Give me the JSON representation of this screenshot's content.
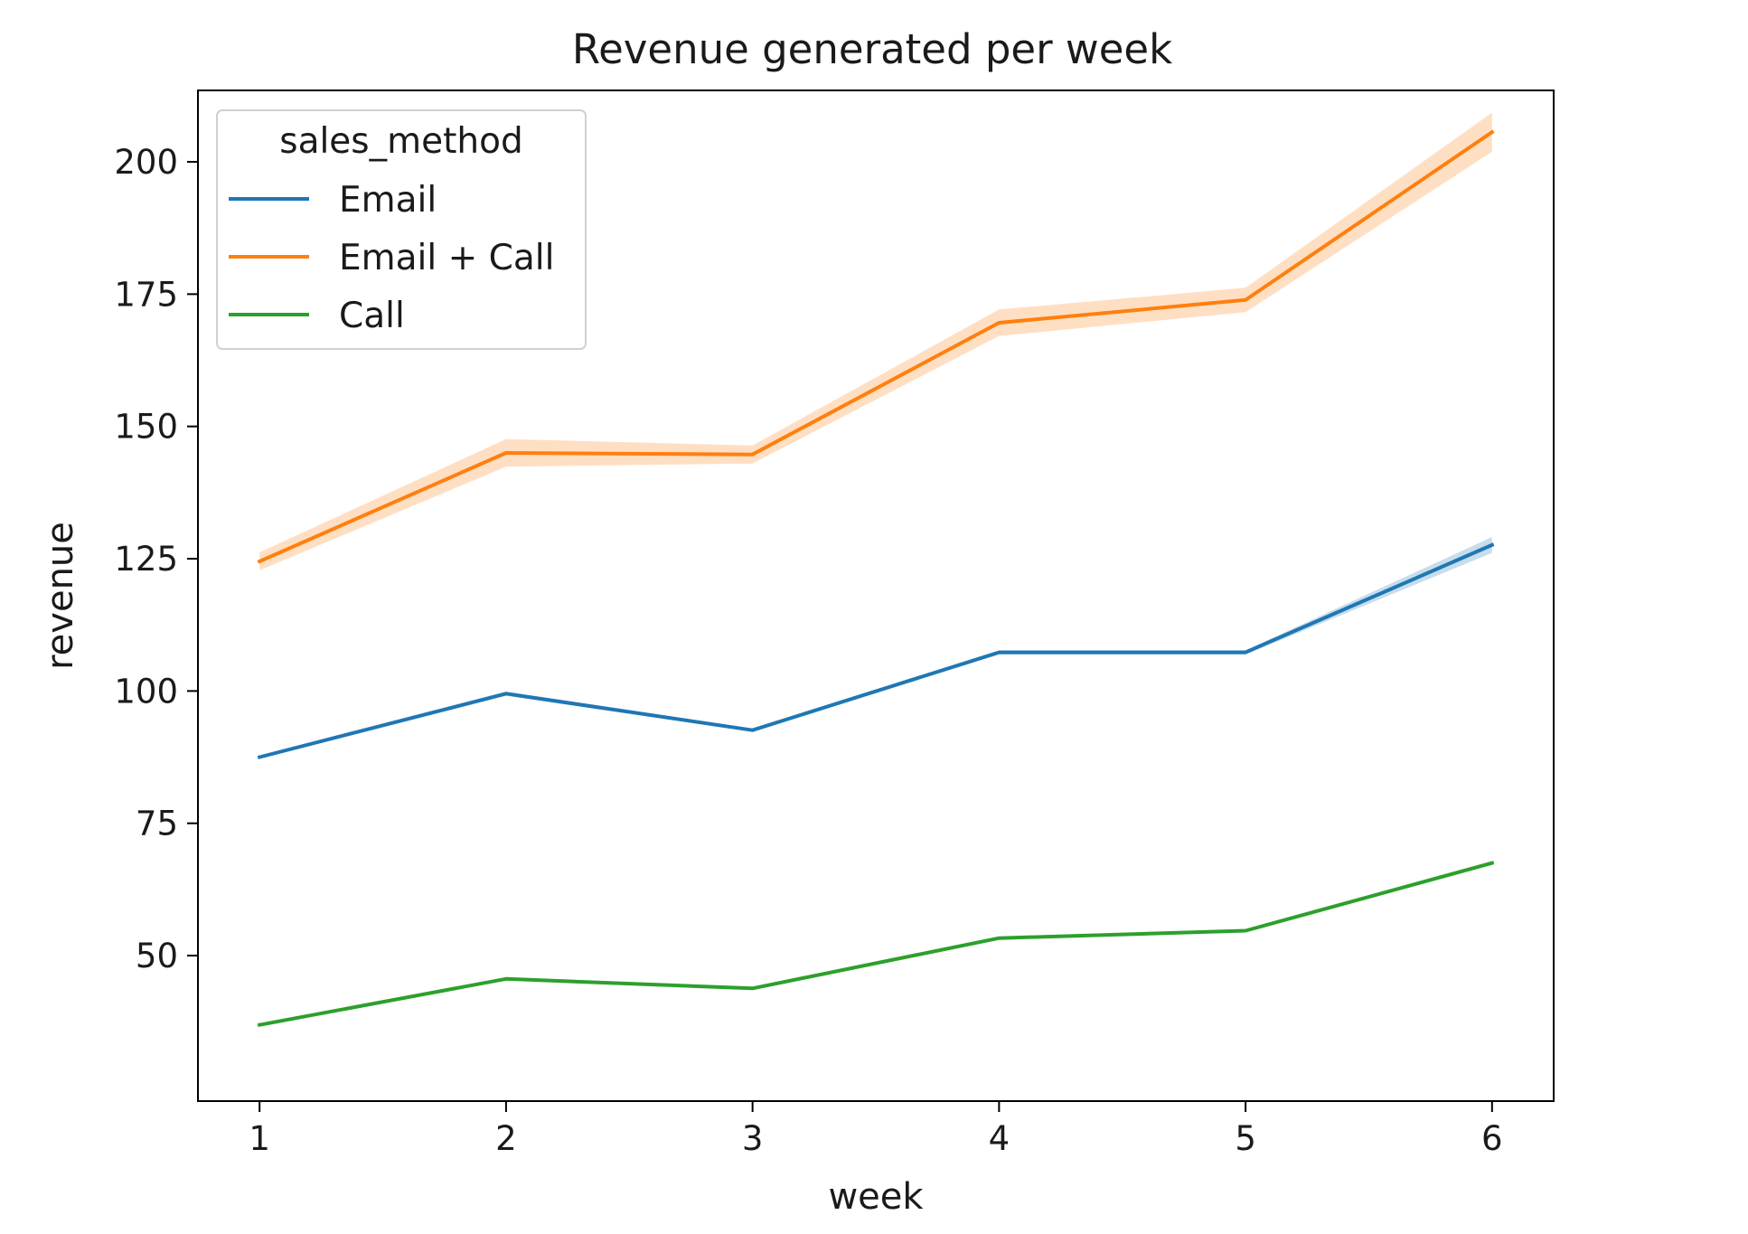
{
  "chart_data": {
    "type": "line",
    "title": "Revenue generated per week",
    "xlabel": "week",
    "ylabel": "revenue",
    "x": [
      1,
      2,
      3,
      4,
      5,
      6
    ],
    "xlim": [
      0.75,
      6.25
    ],
    "ylim": [
      22.5,
      213.5
    ],
    "xticks": [
      1,
      2,
      3,
      4,
      5,
      6
    ],
    "yticks": [
      50,
      75,
      100,
      125,
      150,
      175,
      200
    ],
    "grid": false,
    "legend": {
      "title": "sales_method",
      "placement": "top-left"
    },
    "series": [
      {
        "name": "Email",
        "color": "#1f77b4",
        "values": [
          87.5,
          99.5,
          92.6,
          107.3,
          107.3,
          127.6
        ],
        "ci_halfwidth": [
          0.3,
          0.4,
          0.3,
          0.4,
          0.4,
          1.5
        ]
      },
      {
        "name": "Email + Call",
        "color": "#ff7f0e",
        "values": [
          124.5,
          145.0,
          144.7,
          169.6,
          173.9,
          205.6
        ],
        "ci_halfwidth": [
          1.7,
          2.6,
          1.7,
          2.5,
          2.3,
          3.7
        ]
      },
      {
        "name": "Call",
        "color": "#2ca02c",
        "values": [
          36.9,
          45.6,
          43.8,
          53.3,
          54.7,
          67.5
        ],
        "ci_halfwidth": [
          0.3,
          0.3,
          0.3,
          0.3,
          0.3,
          0.4
        ]
      }
    ]
  }
}
